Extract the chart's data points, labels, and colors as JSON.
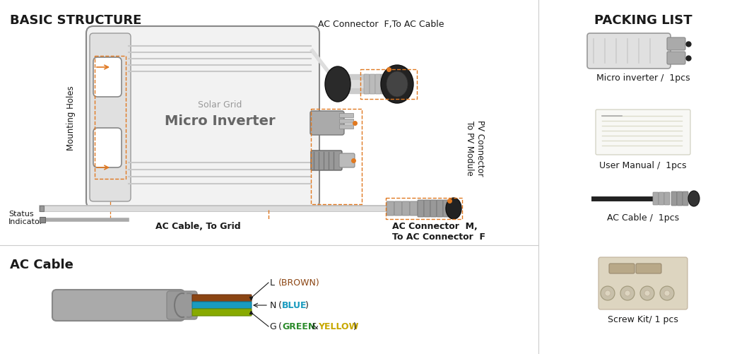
{
  "bg_color": "#ffffff",
  "title_basic": "BASIC STRUCTURE",
  "title_packing": "PACKING LIST",
  "title_ac_cable": "AC Cable",
  "text_solar_grid": "Solar Grid",
  "text_micro_inverter": "Micro Inverter",
  "text_mounting_holes": "Mounting Holes",
  "text_ac_connector_f": "AC Connector  F,To AC Cable",
  "text_pv_connector": "PV Connector\nTo PV Module",
  "text_ac_cable_grid": "AC Cable, To Grid",
  "text_ac_connector_m": "AC Connector  M,\nTo AC Connector  F",
  "text_packing_micro": "Micro inverter /  1pcs",
  "text_packing_manual": "User Manual /  1pcs",
  "text_packing_cable": "AC Cable /  1pcs",
  "text_packing_screw": "Screw Kit/ 1 pcs",
  "orange_color": "#E07820",
  "dark_color": "#1a1a1a",
  "brown_color": "#8B4513",
  "blue_color": "#1a9bbf",
  "green_color": "#2d8c2d",
  "yellow_color": "#c8a800"
}
